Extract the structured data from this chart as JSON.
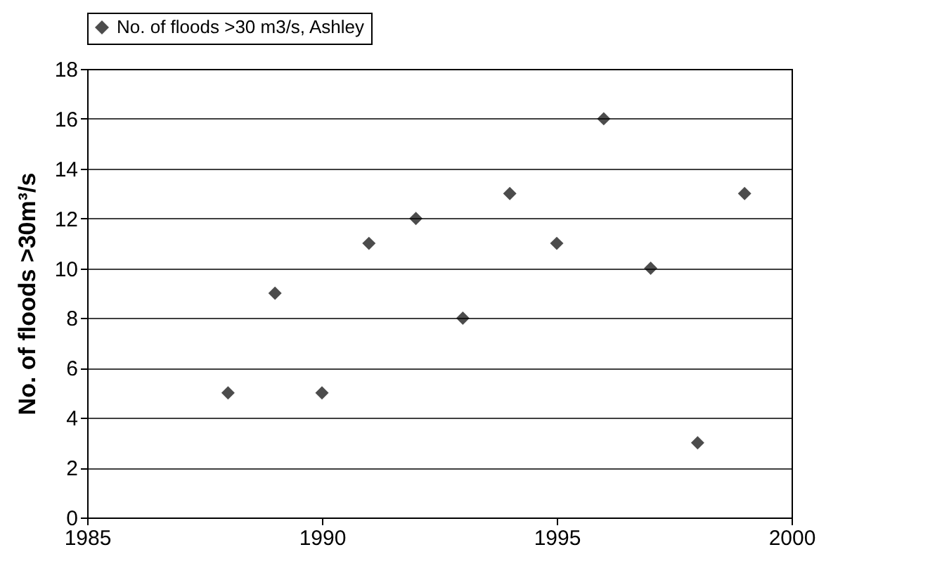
{
  "chart_data": {
    "type": "scatter",
    "ylabel": "No. of floods >30m³/s",
    "x": [
      1988,
      1989,
      1990,
      1991,
      1992,
      1993,
      1994,
      1995,
      1996,
      1997,
      1998,
      1999
    ],
    "series": [
      {
        "name": "No. of floods >30 m3/s, Ashley",
        "color": "#000000",
        "values": [
          5,
          9,
          5,
          11,
          12,
          8,
          13,
          11,
          16,
          10,
          3,
          13
        ]
      }
    ],
    "xlim": [
      1985,
      2000
    ],
    "xticks": [
      1985,
      1990,
      1995,
      2000
    ],
    "ylim": [
      0,
      18
    ],
    "yticks": [
      0,
      2,
      4,
      6,
      8,
      10,
      12,
      14,
      16,
      18
    ],
    "grid": "y",
    "legend": "top",
    "marker": "diamond"
  }
}
